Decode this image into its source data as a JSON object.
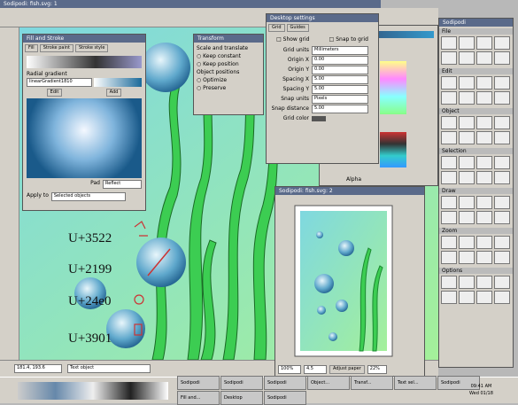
{
  "window": {
    "title": "Sodipodi: fish.svg: 1"
  },
  "canvas": {
    "labels": [
      "U+3522",
      "U+2199",
      "U+24e0",
      "U+3901"
    ]
  },
  "fill_dialog": {
    "title": "Fill and Stroke",
    "tabs": [
      "Fill",
      "Stroke paint",
      "Stroke style"
    ],
    "gradient_label": "Radial gradient",
    "gradient_name": "linearGradient1810",
    "buttons": [
      "Edit",
      "Add"
    ],
    "spread_label": "Pad",
    "spread_value": "Reflect",
    "apply": "Apply to",
    "apply_value": "Selected objects"
  },
  "transform_dialog": {
    "title": "Transform",
    "sections": [
      "Scale and translate",
      "Object positions"
    ],
    "options": [
      "Keep constant",
      "Keep position",
      "Optimize",
      "Preserve"
    ]
  },
  "grid_dialog": {
    "title": "Desktop settings",
    "tabs": [
      "Grid",
      "Guides"
    ],
    "checks": [
      "Show grid",
      "Snap to grid"
    ],
    "fields": [
      {
        "label": "Grid units",
        "value": "Millimeters"
      },
      {
        "label": "Origin X",
        "value": "0.00"
      },
      {
        "label": "Origin Y",
        "value": "0.00"
      },
      {
        "label": "Spacing X",
        "value": "5.00"
      },
      {
        "label": "Spacing Y",
        "value": "5.00"
      },
      {
        "label": "Snap units",
        "value": "Pixels"
      },
      {
        "label": "Snap distance",
        "value": "5.00"
      }
    ],
    "color_label": "Grid color"
  },
  "color_panel": {
    "labels": [
      "Alpha"
    ]
  },
  "preview_window": {
    "title": "Sodipodi: fish.svg: 2",
    "status": [
      "100%",
      "4.5"
    ],
    "zoom_label": "Adjust paper",
    "zoom": "22%"
  },
  "toolbox": {
    "title": "Sodipodi",
    "sections": [
      "File",
      "Edit",
      "Object",
      "Selection",
      "Draw",
      "Zoom",
      "Options"
    ]
  },
  "statusbar": {
    "coords": "181.4, 193.6",
    "message": "Text object"
  },
  "taskbar": {
    "items": [
      "Sodipodi",
      "Sodipodi",
      "Sodipodi",
      "Object...",
      "Transf...",
      "Text sel...",
      "Sodipodi",
      "Fill and...",
      "Desktop",
      "Sodipodi"
    ],
    "clock": "09:41 AM",
    "date": "Wed 01/18"
  }
}
